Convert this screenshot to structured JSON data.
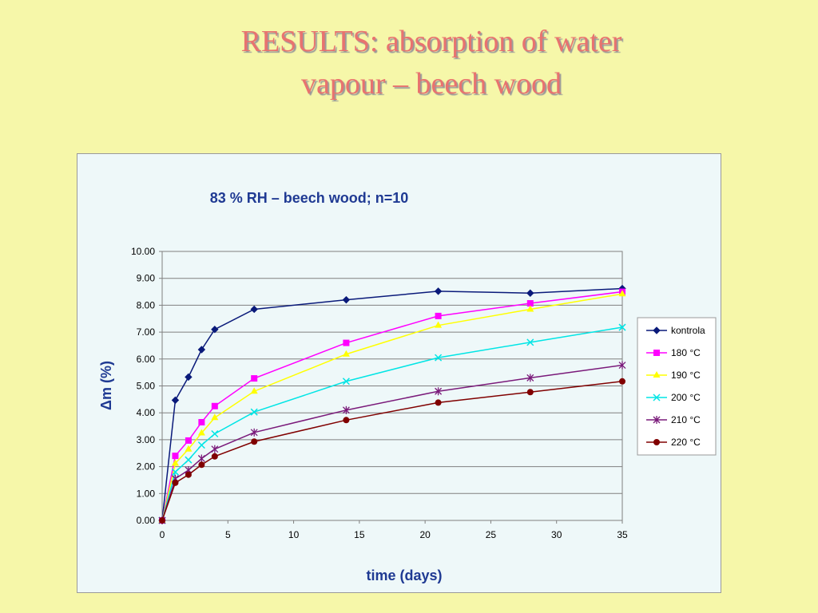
{
  "slide": {
    "title_line1": "RESULTS: absorption of water",
    "title_line2": "vapour – beech wood"
  },
  "chart_data": {
    "type": "line",
    "title": "83 % RH – beech wood; n=10",
    "xlabel": "time (days)",
    "ylabel": "Δm (%)",
    "xlim": [
      0,
      35
    ],
    "ylim": [
      0,
      10
    ],
    "xticks": [
      "0",
      "5",
      "10",
      "15",
      "20",
      "25",
      "30",
      "35"
    ],
    "yticks": [
      "0.00",
      "1.00",
      "2.00",
      "3.00",
      "4.00",
      "5.00",
      "6.00",
      "7.00",
      "8.00",
      "9.00",
      "10.00"
    ],
    "grid": "horizontal",
    "legend_position": "right",
    "x": [
      0,
      1,
      2,
      3,
      4,
      7,
      14,
      21,
      28,
      35
    ],
    "series": [
      {
        "name": "kontrola",
        "color": "#0a1a7a",
        "marker": "diamond",
        "values": [
          0,
          4.47,
          5.33,
          6.35,
          7.1,
          7.85,
          8.2,
          8.52,
          8.45,
          8.62
        ]
      },
      {
        "name": "180 °C",
        "color": "#ff00ff",
        "marker": "square",
        "values": [
          0,
          2.4,
          2.97,
          3.65,
          4.25,
          5.28,
          6.6,
          7.6,
          8.07,
          8.5
        ]
      },
      {
        "name": "190 °C",
        "color": "#ffff00",
        "marker": "triangle",
        "values": [
          0,
          2.12,
          2.65,
          3.25,
          3.82,
          4.8,
          6.18,
          7.25,
          7.85,
          8.42
        ]
      },
      {
        "name": "200 °C",
        "color": "#00e5e5",
        "marker": "x",
        "values": [
          0,
          1.8,
          2.25,
          2.8,
          3.22,
          4.03,
          5.17,
          6.05,
          6.62,
          7.18
        ]
      },
      {
        "name": "210 °C",
        "color": "#7a1a7a",
        "marker": "star",
        "values": [
          0,
          1.55,
          1.87,
          2.3,
          2.65,
          3.27,
          4.1,
          4.8,
          5.3,
          5.77
        ]
      },
      {
        "name": "220 °C",
        "color": "#800000",
        "marker": "circle",
        "values": [
          0,
          1.4,
          1.7,
          2.07,
          2.38,
          2.93,
          3.73,
          4.38,
          4.77,
          5.17
        ]
      }
    ]
  }
}
